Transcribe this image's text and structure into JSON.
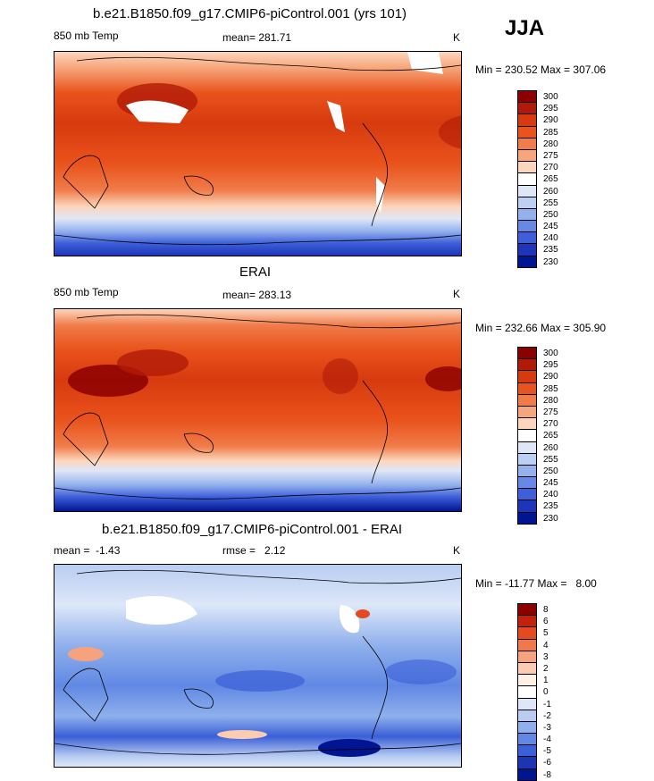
{
  "season": "JJA",
  "chart_data": [
    {
      "type": "heatmap",
      "title": "b.e21.B1850.f09_g17.CMIP6-piControl.001 (yrs 101)",
      "variable": "850 mb Temp",
      "units": "K",
      "stat_label": "mean=",
      "stat_value": "281.71",
      "min_max": "Min = 230.52 Max = 307.06",
      "colors": [
        "#8b0000",
        "#b11a08",
        "#d73a0e",
        "#e9531c",
        "#f07c4a",
        "#f7a57a",
        "#fcd6bc",
        "#ffffff",
        "#dfe7f7",
        "#bcd0f3",
        "#94b1ee",
        "#6689e6",
        "#3d5fd9",
        "#1d35b8",
        "#001592"
      ],
      "legend_labels": [
        "300",
        "295",
        "290",
        "285",
        "280",
        "275",
        "270",
        "265",
        "260",
        "255",
        "250",
        "245",
        "240",
        "235",
        "230"
      ],
      "x_range": [
        0,
        360
      ],
      "y_range": [
        -90,
        90
      ]
    },
    {
      "type": "heatmap",
      "title": "ERAI",
      "variable": "850 mb Temp",
      "units": "K",
      "stat_label": "mean=",
      "stat_value": "283.13",
      "min_max": "Min = 232.66 Max = 305.90",
      "colors": [
        "#8b0000",
        "#b11a08",
        "#d73a0e",
        "#e9531c",
        "#f07c4a",
        "#f7a57a",
        "#fcd6bc",
        "#ffffff",
        "#dfe7f7",
        "#bcd0f3",
        "#94b1ee",
        "#6689e6",
        "#3d5fd9",
        "#1d35b8",
        "#001592"
      ],
      "legend_labels": [
        "300",
        "295",
        "290",
        "285",
        "280",
        "275",
        "270",
        "265",
        "260",
        "255",
        "250",
        "245",
        "240",
        "235",
        "230"
      ],
      "x_range": [
        0,
        360
      ],
      "y_range": [
        -90,
        90
      ]
    },
    {
      "type": "heatmap",
      "title": "b.e21.B1850.f09_g17.CMIP6-piControl.001 - ERAI",
      "units": "K",
      "stat_label": "mean =",
      "stat_value": "-1.43",
      "rmse_label": "rmse =",
      "rmse_value": "2.12",
      "min_max": "Min = -11.77 Max =   8.00",
      "colors": [
        "#8b0000",
        "#c4200a",
        "#e34a1f",
        "#f0784a",
        "#f6a37d",
        "#fbccb2",
        "#fff0e6",
        "#ffffff",
        "#dde7f8",
        "#b9cdf2",
        "#8fb0ec",
        "#6188e4",
        "#3a5fd7",
        "#1b35b5",
        "#001592"
      ],
      "legend_labels": [
        "8",
        "6",
        "5",
        "4",
        "3",
        "2",
        "1",
        "0",
        "-1",
        "-2",
        "-3",
        "-4",
        "-5",
        "-6",
        "-8"
      ],
      "x_range": [
        0,
        360
      ],
      "y_range": [
        -90,
        90
      ]
    }
  ]
}
